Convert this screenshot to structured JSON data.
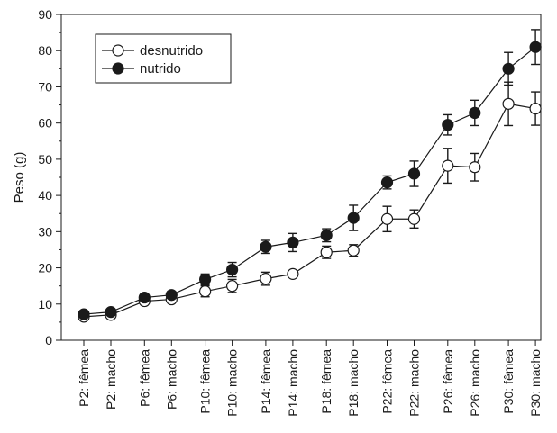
{
  "chart_data": {
    "type": "line",
    "title": "",
    "xlabel": "",
    "ylabel": "Peso (g)",
    "ylim": [
      0,
      90
    ],
    "yticks": [
      0,
      10,
      20,
      30,
      40,
      50,
      60,
      70,
      80,
      90
    ],
    "grid": false,
    "legend_position": "top-left",
    "categories": [
      "P2: fêmea",
      "P2: macho",
      "P6: fêmea",
      "P6: macho",
      "P10: fêmea",
      "P10: macho",
      "P14: fêmea",
      "P14: macho",
      "P18: fêmea",
      "P18: macho",
      "P22: fêmea",
      "P22: macho",
      "P26: fêmea",
      "P26: macho",
      "P30: fêmea",
      "P30: macho"
    ],
    "series": [
      {
        "name": "desnutrido",
        "marker": "open-circle",
        "values": [
          6.5,
          7.0,
          10.8,
          11.3,
          13.5,
          15.0,
          17.0,
          18.3,
          24.3,
          24.8,
          33.5,
          33.5,
          48.2,
          47.8,
          65.3,
          64.0
        ],
        "errors": [
          0.5,
          0.6,
          0.8,
          0.8,
          1.5,
          1.8,
          1.8,
          0.8,
          1.7,
          1.6,
          3.5,
          2.5,
          4.8,
          3.8,
          6.0,
          4.6
        ]
      },
      {
        "name": "nutrido",
        "marker": "filled-circle",
        "values": [
          7.2,
          7.8,
          11.8,
          12.5,
          16.8,
          19.5,
          25.8,
          27.0,
          29.0,
          33.8,
          43.6,
          46.0,
          59.5,
          62.8,
          75.0,
          81.0
        ],
        "errors": [
          0.6,
          0.7,
          0.9,
          0.9,
          1.5,
          2.0,
          1.8,
          2.5,
          1.8,
          3.5,
          1.8,
          3.5,
          2.8,
          3.5,
          4.5,
          4.8
        ]
      }
    ],
    "colors": {
      "axis": "#1a1a1a",
      "marker_fill_filled": "#1a1a1a",
      "marker_fill_open": "#ffffff"
    }
  }
}
